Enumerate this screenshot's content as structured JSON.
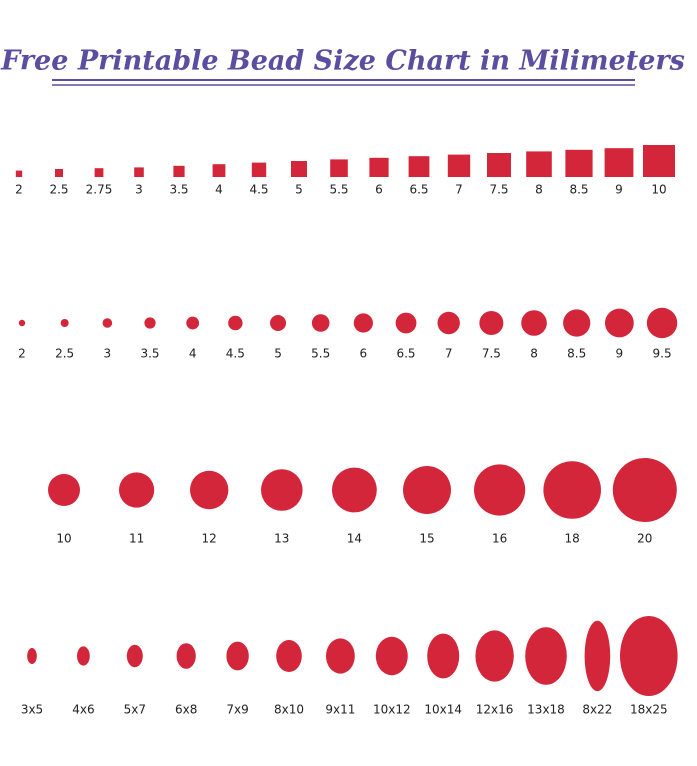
{
  "title": "Free Printable Bead Size Chart in Milimeters",
  "squares": [
    2,
    2.5,
    2.75,
    3,
    3.5,
    4,
    4.5,
    5,
    5.5,
    6,
    6.5,
    7,
    7.5,
    8,
    8.5,
    9,
    10
  ],
  "small_rounds": [
    2,
    2.5,
    3,
    3.5,
    4,
    4.5,
    5,
    5.5,
    6,
    6.5,
    7,
    7.5,
    8,
    8.5,
    9,
    9.5
  ],
  "large_rounds": [
    10,
    11,
    12,
    13,
    14,
    15,
    16,
    18,
    20
  ],
  "ovals": [
    {
      "label": "3x5",
      "width": 3,
      "height": 5
    },
    {
      "label": "4x6",
      "width": 4,
      "height": 6
    },
    {
      "label": "5x7",
      "width": 5,
      "height": 7
    },
    {
      "label": "6x8",
      "width": 6,
      "height": 8
    },
    {
      "label": "7x9",
      "width": 7,
      "height": 9
    },
    {
      "label": "8x10",
      "width": 8,
      "height": 10
    },
    {
      "label": "9x11",
      "width": 9,
      "height": 11
    },
    {
      "label": "10x12",
      "width": 10,
      "height": 12
    },
    {
      "label": "10x14",
      "width": 10,
      "height": 14
    },
    {
      "label": "12x16",
      "width": 12,
      "height": 16
    },
    {
      "label": "13x18",
      "width": 13,
      "height": 18
    },
    {
      "label": "8x22",
      "width": 8,
      "height": 22
    },
    {
      "label": "18x25",
      "width": 18,
      "height": 25
    }
  ],
  "color": "#d4263a"
}
